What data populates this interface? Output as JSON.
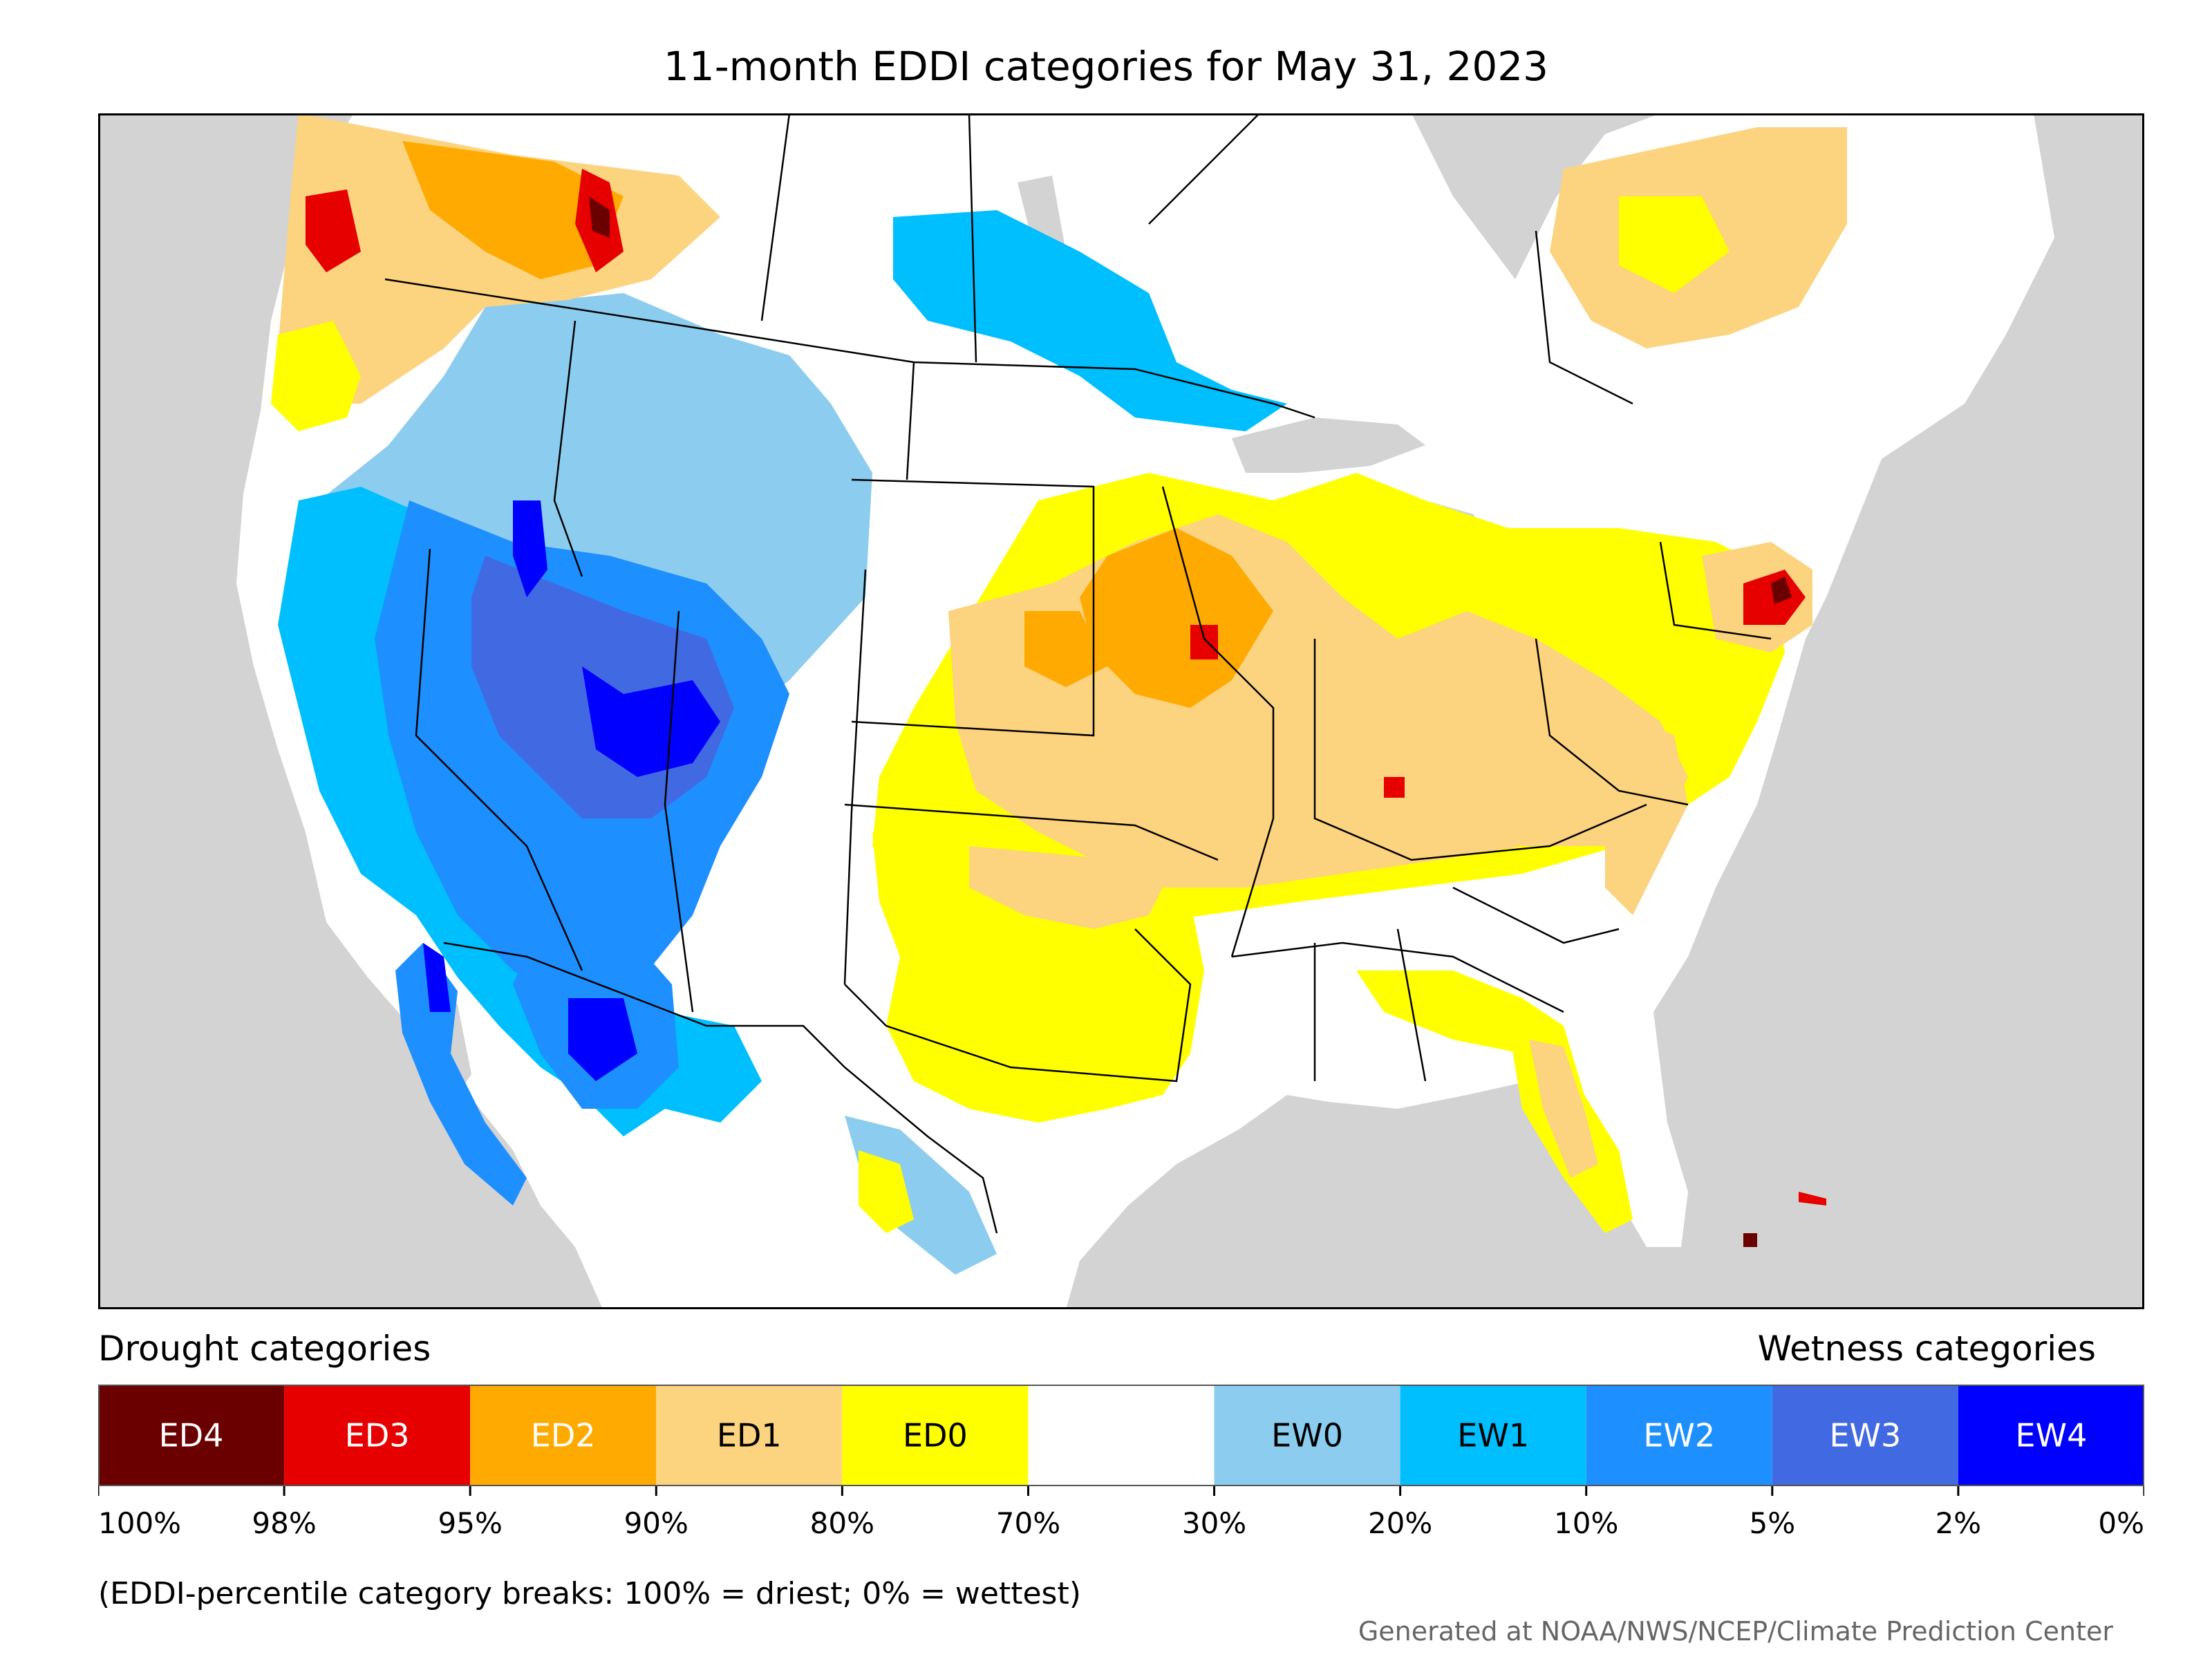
{
  "title": "11-month EDDI categories for May 31, 2023",
  "legend": {
    "drought_heading": "Drought categories",
    "wetness_heading": "Wetness categories",
    "categories": [
      {
        "label": "ED4",
        "color": "#6b0000",
        "text_color": "#ffffff"
      },
      {
        "label": "ED3",
        "color": "#e60000",
        "text_color": "#ffffff"
      },
      {
        "label": "ED2",
        "color": "#ffaa00",
        "text_color": "#ffffff"
      },
      {
        "label": "ED1",
        "color": "#fcd37f",
        "text_color": "#000000"
      },
      {
        "label": "ED0",
        "color": "#ffff00",
        "text_color": "#000000"
      },
      {
        "label": "",
        "color": "#ffffff",
        "text_color": "#000000"
      },
      {
        "label": "EW0",
        "color": "#8ccdef",
        "text_color": "#000000"
      },
      {
        "label": "EW1",
        "color": "#00bfff",
        "text_color": "#000000"
      },
      {
        "label": "EW2",
        "color": "#1e8fff",
        "text_color": "#ffffff"
      },
      {
        "label": "EW3",
        "color": "#4169e1",
        "text_color": "#ffffff"
      },
      {
        "label": "EW4",
        "color": "#0000ff",
        "text_color": "#ffffff"
      }
    ],
    "ticks": [
      "100%",
      "98%",
      "95%",
      "90%",
      "80%",
      "70%",
      "30%",
      "20%",
      "10%",
      "5%",
      "2%",
      "0%"
    ]
  },
  "note": "(EDDI-percentile category breaks: 100% = driest; 0% = wettest)",
  "credit": "Generated at NOAA/NWS/NCEP/Climate Prediction Center",
  "map": {
    "ocean_color": "#d3d3d3",
    "land_color": "#ffffff",
    "regions": [
      {
        "name": "pacific-northwest-wet",
        "category": "EW1"
      },
      {
        "name": "great-basin-wet",
        "category": "EW2"
      },
      {
        "name": "nevada-utah-wet",
        "category": "EW3"
      },
      {
        "name": "utah-colorado-core-wet",
        "category": "EW4"
      },
      {
        "name": "arizona-wet",
        "category": "EW2"
      },
      {
        "name": "baja-california-wet",
        "category": "EW2"
      },
      {
        "name": "northern-rockies-wet",
        "category": "EW0"
      },
      {
        "name": "canadian-prairie-wet",
        "category": "EW1"
      },
      {
        "name": "british-columbia-dry",
        "category": "ED2"
      },
      {
        "name": "central-plains-dry",
        "category": "ED1"
      },
      {
        "name": "iowa-missouri-dry",
        "category": "ED2"
      },
      {
        "name": "ohio-valley-dry",
        "category": "ED1"
      },
      {
        "name": "southern-new-england-dry",
        "category": "ED3"
      },
      {
        "name": "texas-gulf-dry",
        "category": "ED0"
      },
      {
        "name": "florida-dry",
        "category": "ED1"
      },
      {
        "name": "quebec-dry",
        "category": "ED1"
      }
    ]
  }
}
